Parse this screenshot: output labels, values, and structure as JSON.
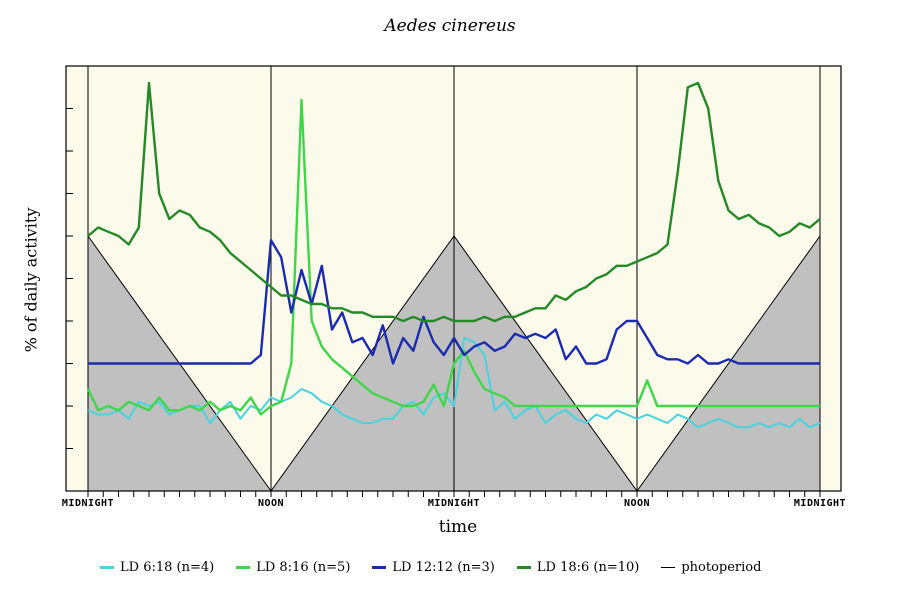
{
  "chart_data": {
    "type": "line",
    "title": "Aedes cinereus",
    "xlabel": "time",
    "ylabel": "% of daily activity",
    "x_tick_labels": [
      "MIDNIGHT",
      "NOON",
      "MIDNIGHT",
      "NOON",
      "MIDNIGHT"
    ],
    "x_unit": "hours",
    "xlim": [
      0,
      48
    ],
    "ylim": [
      0,
      10
    ],
    "grid": false,
    "legend_position": "bottom",
    "photoperiod": {
      "name": "photoperiod",
      "x": [
        0,
        12,
        24,
        36,
        48
      ],
      "y": [
        6,
        0,
        6,
        0,
        6
      ]
    },
    "series": [
      {
        "name": "LD 6:18 (n=4)",
        "color": "#47d3e0",
        "values": [
          1.9,
          1.8,
          1.8,
          1.9,
          1.7,
          2.1,
          2.0,
          2.1,
          1.8,
          1.9,
          2.0,
          2.0,
          1.6,
          1.9,
          2.1,
          1.7,
          2.0,
          1.9,
          2.2,
          2.1,
          2.2,
          2.4,
          2.3,
          2.1,
          2.0,
          1.8,
          1.7,
          1.6,
          1.6,
          1.7,
          1.7,
          2.0,
          2.1,
          1.8,
          2.2,
          2.3,
          2.0,
          3.6,
          3.5,
          3.2,
          1.9,
          2.1,
          1.7,
          1.9,
          2.0,
          1.6,
          1.8,
          1.9,
          1.7,
          1.6,
          1.8,
          1.7,
          1.9,
          1.8,
          1.7,
          1.8,
          1.7,
          1.6,
          1.8,
          1.7,
          1.5,
          1.6,
          1.7,
          1.6,
          1.5,
          1.5,
          1.6,
          1.5,
          1.6,
          1.5,
          1.7,
          1.5,
          1.6
        ]
      },
      {
        "name": "LD 8:16 (n=5)",
        "color": "#3fd649",
        "values": [
          2.4,
          1.9,
          2.0,
          1.9,
          2.1,
          2.0,
          1.9,
          2.2,
          1.9,
          1.9,
          2.0,
          1.9,
          2.1,
          1.9,
          2.0,
          1.9,
          2.2,
          1.8,
          2.0,
          2.1,
          3.0,
          9.2,
          4.0,
          3.4,
          3.1,
          2.9,
          2.7,
          2.5,
          2.3,
          2.2,
          2.1,
          2.0,
          2.0,
          2.1,
          2.5,
          2.0,
          3.0,
          3.3,
          2.8,
          2.4,
          2.3,
          2.2,
          2.0,
          2.0,
          2.0,
          2.0,
          2.0,
          2.0,
          2.0,
          2.0,
          2.0,
          2.0,
          2.0,
          2.0,
          2.0,
          2.6,
          2.0,
          2.0,
          2.0,
          2.0,
          2.0,
          2.0,
          2.0,
          2.0,
          2.0,
          2.0,
          2.0,
          2.0,
          2.0,
          2.0,
          2.0,
          2.0,
          2.0
        ]
      },
      {
        "name": "LD 12:12 (n=3)",
        "color": "#1a2bb0",
        "values": [
          3.0,
          3.0,
          3.0,
          3.0,
          3.0,
          3.0,
          3.0,
          3.0,
          3.0,
          3.0,
          3.0,
          3.0,
          3.0,
          3.0,
          3.0,
          3.0,
          3.0,
          3.2,
          5.9,
          5.5,
          4.2,
          5.2,
          4.4,
          5.3,
          3.8,
          4.2,
          3.5,
          3.6,
          3.2,
          3.9,
          3.0,
          3.6,
          3.3,
          4.1,
          3.5,
          3.2,
          3.6,
          3.2,
          3.4,
          3.5,
          3.3,
          3.4,
          3.7,
          3.6,
          3.7,
          3.6,
          3.8,
          3.1,
          3.4,
          3.0,
          3.0,
          3.1,
          3.8,
          4.0,
          4.0,
          3.6,
          3.2,
          3.1,
          3.1,
          3.0,
          3.2,
          3.0,
          3.0,
          3.1,
          3.0,
          3.0,
          3.0,
          3.0,
          3.0,
          3.0,
          3.0,
          3.0,
          3.0
        ]
      },
      {
        "name": "LD 18:6 (n=10)",
        "color": "#238a25",
        "values": [
          6.0,
          6.2,
          6.1,
          6.0,
          5.8,
          6.2,
          9.6,
          7.0,
          6.4,
          6.6,
          6.5,
          6.2,
          6.1,
          5.9,
          5.6,
          5.4,
          5.2,
          5.0,
          4.8,
          4.6,
          4.6,
          4.5,
          4.4,
          4.4,
          4.3,
          4.3,
          4.2,
          4.2,
          4.1,
          4.1,
          4.1,
          4.0,
          4.1,
          4.0,
          4.0,
          4.1,
          4.0,
          4.0,
          4.0,
          4.1,
          4.0,
          4.1,
          4.1,
          4.2,
          4.3,
          4.3,
          4.6,
          4.5,
          4.7,
          4.8,
          5.0,
          5.1,
          5.3,
          5.3,
          5.4,
          5.5,
          5.6,
          5.8,
          7.5,
          9.5,
          9.6,
          9.0,
          7.3,
          6.6,
          6.4,
          6.5,
          6.3,
          6.2,
          6.0,
          6.1,
          6.3,
          6.2,
          6.4
        ]
      }
    ]
  }
}
